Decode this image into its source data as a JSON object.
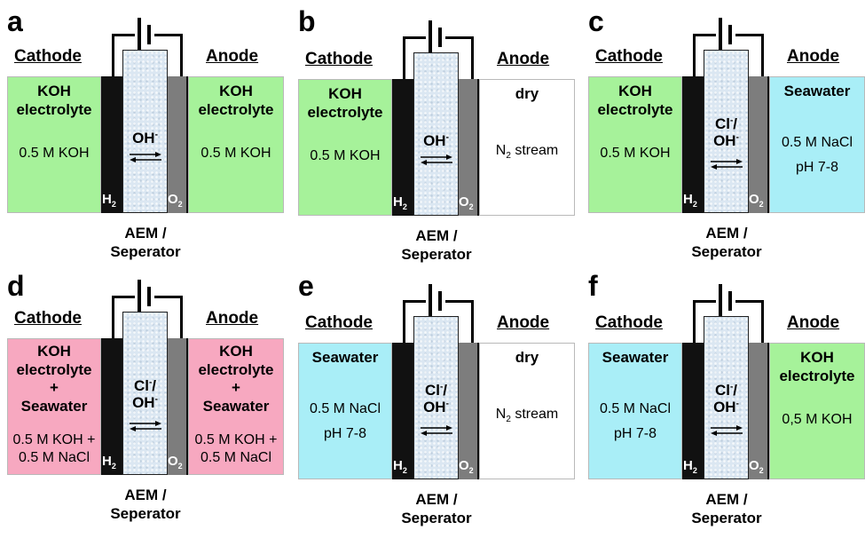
{
  "colors": {
    "koh": "#a6f29a",
    "seawater": "#a9eef7",
    "mixed": "#f7a8c0",
    "dry": "#ffffff"
  },
  "membrane_label": [
    "AEM /",
    "Seperator"
  ],
  "gas": {
    "cathode": "H",
    "anode": "O",
    "subscript": "2"
  },
  "panels": [
    {
      "letter": "a",
      "cathode_header": "Cathode",
      "anode_header": "Anode",
      "ion": {
        "species": [
          {
            "base": "OH",
            "sup": "-"
          }
        ]
      },
      "cathode": {
        "fill": "koh",
        "lines": [
          "KOH",
          "electrolyte"
        ],
        "detail": [
          "0.5 M KOH"
        ]
      },
      "anode": {
        "fill": "koh",
        "lines": [
          "KOH",
          "electrolyte"
        ],
        "detail": [
          "0.5 M KOH"
        ]
      }
    },
    {
      "letter": "b",
      "cathode_header": "Cathode",
      "anode_header": "Anode",
      "ion": {
        "species": [
          {
            "base": "OH",
            "sup": "-"
          }
        ]
      },
      "cathode": {
        "fill": "koh",
        "lines": [
          "KOH",
          "electrolyte"
        ],
        "detail": [
          "0.5 M KOH"
        ]
      },
      "anode": {
        "fill": "dry",
        "lines": [
          "dry"
        ],
        "detail": [
          "N",
          "2",
          " stream"
        ]
      }
    },
    {
      "letter": "c",
      "cathode_header": "Cathode",
      "anode_header": "Anode",
      "ion": {
        "species": [
          {
            "base": "Cl",
            "sup": "-",
            "tail": "/"
          },
          {
            "base": "OH",
            "sup": "-"
          }
        ]
      },
      "cathode": {
        "fill": "koh",
        "lines": [
          "KOH",
          "electrolyte"
        ],
        "detail": [
          "0.5 M KOH"
        ]
      },
      "anode": {
        "fill": "seawater",
        "lines": [
          "Seawater"
        ],
        "detail": [
          "0.5 M NaCl",
          "pH 7-8"
        ]
      }
    },
    {
      "letter": "d",
      "cathode_header": "Cathode",
      "anode_header": "Anode",
      "ion": {
        "species": [
          {
            "base": "Cl",
            "sup": "-",
            "tail": "/"
          },
          {
            "base": "OH",
            "sup": "-"
          }
        ]
      },
      "cathode": {
        "fill": "mixed",
        "lines": [
          "KOH",
          "electrolyte",
          "+",
          "Seawater"
        ],
        "detail": [
          "0.5 M KOH +",
          "0.5 M NaCl"
        ]
      },
      "anode": {
        "fill": "mixed",
        "lines": [
          "KOH",
          "electrolyte",
          "+",
          "Seawater"
        ],
        "detail": [
          "0.5 M KOH +",
          "0.5 M NaCl"
        ]
      }
    },
    {
      "letter": "e",
      "cathode_header": "Cathode",
      "anode_header": "Anode",
      "ion": {
        "species": [
          {
            "base": "Cl",
            "sup": "-",
            "tail": "/"
          },
          {
            "base": "OH",
            "sup": "-"
          }
        ]
      },
      "cathode": {
        "fill": "seawater",
        "lines": [
          "Seawater"
        ],
        "detail": [
          "0.5 M NaCl",
          "pH 7-8"
        ]
      },
      "anode": {
        "fill": "dry",
        "lines": [
          "dry"
        ],
        "detail": [
          "N",
          "2",
          " stream"
        ]
      }
    },
    {
      "letter": "f",
      "cathode_header": "Cathode",
      "anode_header": "Anode",
      "ion": {
        "species": [
          {
            "base": "Cl",
            "sup": "-",
            "tail": "/"
          },
          {
            "base": "OH",
            "sup": "-"
          }
        ]
      },
      "cathode": {
        "fill": "seawater",
        "lines": [
          "Seawater"
        ],
        "detail": [
          "0.5 M NaCl",
          "pH 7-8"
        ]
      },
      "anode": {
        "fill": "koh",
        "lines": [
          "KOH",
          "electrolyte"
        ],
        "detail": [
          "0,5 M KOH"
        ]
      }
    }
  ]
}
